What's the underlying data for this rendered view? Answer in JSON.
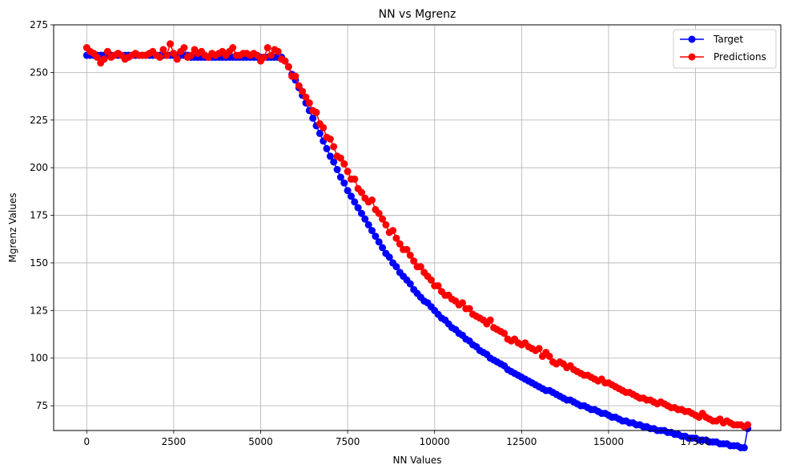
{
  "chart_data": {
    "type": "line",
    "title": "NN vs Mgrenz",
    "xlabel": "NN Values",
    "ylabel": "Mgrenz Values",
    "xlim": [
      -950,
      19950
    ],
    "ylim": [
      62,
      275
    ],
    "xticks": [
      0,
      2500,
      5000,
      7500,
      10000,
      12500,
      15000,
      17500
    ],
    "yticks": [
      75,
      100,
      125,
      150,
      175,
      200,
      225,
      250,
      275
    ],
    "grid": true,
    "legend_position": "top-right",
    "series": [
      {
        "name": "Target",
        "color": "#0000ff",
        "marker": "circle",
        "x": [
          0,
          100,
          200,
          300,
          400,
          500,
          600,
          700,
          800,
          900,
          1000,
          1100,
          1200,
          1300,
          1400,
          1500,
          1600,
          1700,
          1800,
          1900,
          2000,
          2100,
          2200,
          2300,
          2400,
          2500,
          2600,
          2700,
          2800,
          2900,
          3000,
          3100,
          3200,
          3300,
          3400,
          3500,
          3600,
          3700,
          3800,
          3900,
          4000,
          4100,
          4200,
          4300,
          4400,
          4500,
          4600,
          4700,
          4800,
          4900,
          5000,
          5100,
          5200,
          5300,
          5400,
          5500,
          5600,
          5700,
          5800,
          5900,
          6000,
          6100,
          6200,
          6300,
          6400,
          6500,
          6600,
          6700,
          6800,
          6900,
          7000,
          7100,
          7200,
          7300,
          7400,
          7500,
          7600,
          7700,
          7800,
          7900,
          8000,
          8100,
          8200,
          8300,
          8400,
          8500,
          8600,
          8700,
          8800,
          8900,
          9000,
          9100,
          9200,
          9300,
          9400,
          9500,
          9600,
          9700,
          9800,
          9900,
          10000,
          10100,
          10200,
          10300,
          10400,
          10500,
          10600,
          10700,
          10800,
          10900,
          11000,
          11100,
          11200,
          11300,
          11400,
          11500,
          11600,
          11700,
          11800,
          11900,
          12000,
          12100,
          12200,
          12300,
          12400,
          12500,
          12600,
          12700,
          12800,
          12900,
          13000,
          13100,
          13200,
          13300,
          13400,
          13500,
          13600,
          13700,
          13800,
          13900,
          14000,
          14100,
          14200,
          14300,
          14400,
          14500,
          14600,
          14700,
          14800,
          14900,
          15000,
          15100,
          15200,
          15300,
          15400,
          15500,
          15600,
          15700,
          15800,
          15900,
          16000,
          16100,
          16200,
          16300,
          16400,
          16500,
          16600,
          16700,
          16800,
          16900,
          17000,
          17100,
          17200,
          17300,
          17400,
          17500,
          17600,
          17700,
          17800,
          17900,
          18000,
          18100,
          18200,
          18300,
          18400,
          18500,
          18600,
          18700,
          18800,
          18900,
          19000
        ],
        "y": [
          259,
          259,
          259,
          259,
          259,
          259,
          259,
          259,
          259,
          259,
          259,
          259,
          259,
          259,
          259,
          259,
          259,
          259,
          259,
          259,
          259,
          259,
          259,
          259,
          259,
          259,
          259,
          259,
          259,
          259,
          258,
          258,
          258,
          258,
          258,
          258,
          258,
          258,
          258,
          258,
          258,
          258,
          258,
          258,
          258,
          258,
          258,
          258,
          258,
          258,
          258,
          258,
          258,
          258,
          258,
          258,
          258,
          256,
          253,
          249,
          246,
          242,
          238,
          234,
          230,
          226,
          222,
          218,
          214,
          210,
          206,
          203,
          199,
          195,
          192,
          188,
          185,
          182,
          179,
          176,
          173,
          170,
          167,
          164,
          161,
          158,
          155,
          153,
          150,
          148,
          145,
          143,
          141,
          139,
          136,
          134,
          132,
          130,
          129,
          127,
          125,
          123,
          121,
          120,
          118,
          116,
          115,
          113,
          112,
          110,
          109,
          107,
          106,
          104,
          103,
          102,
          100,
          99,
          98,
          97,
          96,
          94,
          93,
          92,
          91,
          90,
          89,
          88,
          87,
          86,
          85,
          84,
          83,
          83,
          82,
          81,
          80,
          79,
          78,
          78,
          77,
          76,
          75,
          75,
          74,
          73,
          73,
          72,
          71,
          71,
          70,
          69,
          69,
          68,
          67,
          67,
          66,
          66,
          65,
          65,
          64,
          64,
          63,
          63,
          62,
          62,
          62,
          61,
          61,
          60,
          60,
          59,
          59,
          58,
          58,
          58,
          57,
          57,
          57,
          56,
          56,
          56,
          55,
          55,
          55,
          54,
          54,
          54,
          53,
          53,
          63
        ]
      },
      {
        "name": "Predictions",
        "color": "#ff0000",
        "marker": "circle",
        "x": [
          0,
          100,
          200,
          300,
          400,
          500,
          600,
          700,
          800,
          900,
          1000,
          1100,
          1200,
          1300,
          1400,
          1500,
          1600,
          1700,
          1800,
          1900,
          2000,
          2100,
          2200,
          2300,
          2400,
          2500,
          2600,
          2700,
          2800,
          2900,
          3000,
          3100,
          3200,
          3300,
          3400,
          3500,
          3600,
          3700,
          3800,
          3900,
          4000,
          4100,
          4200,
          4300,
          4400,
          4500,
          4600,
          4700,
          4800,
          4900,
          5000,
          5100,
          5200,
          5300,
          5400,
          5500,
          5600,
          5700,
          5800,
          5900,
          6000,
          6100,
          6200,
          6300,
          6400,
          6500,
          6600,
          6700,
          6800,
          6900,
          7000,
          7100,
          7200,
          7300,
          7400,
          7500,
          7600,
          7700,
          7800,
          7900,
          8000,
          8100,
          8200,
          8300,
          8400,
          8500,
          8600,
          8700,
          8800,
          8900,
          9000,
          9100,
          9200,
          9300,
          9400,
          9500,
          9600,
          9700,
          9800,
          9900,
          10000,
          10100,
          10200,
          10300,
          10400,
          10500,
          10600,
          10700,
          10800,
          10900,
          11000,
          11100,
          11200,
          11300,
          11400,
          11500,
          11600,
          11700,
          11800,
          11900,
          12000,
          12100,
          12200,
          12300,
          12400,
          12500,
          12600,
          12700,
          12800,
          12900,
          13000,
          13100,
          13200,
          13300,
          13400,
          13500,
          13600,
          13700,
          13800,
          13900,
          14000,
          14100,
          14200,
          14300,
          14400,
          14500,
          14600,
          14700,
          14800,
          14900,
          15000,
          15100,
          15200,
          15300,
          15400,
          15500,
          15600,
          15700,
          15800,
          15900,
          16000,
          16100,
          16200,
          16300,
          16400,
          16500,
          16600,
          16700,
          16800,
          16900,
          17000,
          17100,
          17200,
          17300,
          17400,
          17500,
          17600,
          17700,
          17800,
          17900,
          18000,
          18100,
          18200,
          18300,
          18400,
          18500,
          18600,
          18700,
          18800,
          18900,
          19000
        ],
        "y": [
          263,
          261,
          260,
          258,
          255,
          257,
          261,
          258,
          259,
          260,
          259,
          257,
          258,
          259,
          260,
          259,
          259,
          259,
          260,
          261,
          259,
          258,
          262,
          259,
          265,
          260,
          257,
          261,
          263,
          258,
          259,
          262,
          260,
          261,
          259,
          258,
          260,
          259,
          260,
          261,
          259,
          261,
          263,
          259,
          259,
          260,
          260,
          259,
          260,
          259,
          256,
          258,
          263,
          259,
          262,
          261,
          257,
          256,
          253,
          248,
          248,
          243,
          240,
          237,
          234,
          230,
          229,
          223,
          221,
          216,
          215,
          211,
          206,
          205,
          202,
          198,
          194,
          194,
          189,
          187,
          184,
          182,
          183,
          178,
          176,
          173,
          170,
          166,
          167,
          163,
          160,
          157,
          157,
          154,
          151,
          148,
          148,
          145,
          143,
          141,
          138,
          138,
          135,
          133,
          133,
          131,
          130,
          128,
          129,
          126,
          126,
          123,
          122,
          121,
          120,
          118,
          120,
          116,
          115,
          114,
          113,
          110,
          109,
          110,
          108,
          107,
          108,
          106,
          105,
          104,
          105,
          101,
          103,
          101,
          98,
          97,
          98,
          97,
          95,
          96,
          94,
          93,
          92,
          91,
          91,
          90,
          89,
          88,
          89,
          87,
          87,
          86,
          85,
          84,
          83,
          82,
          82,
          81,
          80,
          79,
          79,
          78,
          78,
          77,
          76,
          77,
          76,
          75,
          74,
          74,
          73,
          73,
          72,
          72,
          71,
          70,
          69,
          71,
          69,
          68,
          67,
          67,
          68,
          66,
          67,
          66,
          65,
          65,
          65,
          64,
          65
        ]
      }
    ]
  }
}
